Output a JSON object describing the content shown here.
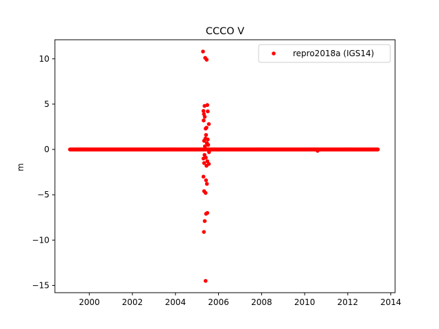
{
  "chart_data": {
    "type": "scatter",
    "title": "CCCO V",
    "xlabel": "",
    "ylabel": "m",
    "xlim": [
      1998.4,
      2014.2
    ],
    "ylim": [
      -15.8,
      12.1
    ],
    "xticks": [
      2000,
      2002,
      2004,
      2006,
      2008,
      2010,
      2012,
      2014
    ],
    "yticks": [
      -15,
      -10,
      -5,
      0,
      5,
      10
    ],
    "grid": false,
    "legend_position": "top-right",
    "series": [
      {
        "name": "repro2018a (IGS14)",
        "color": "#ff0000",
        "marker": "circle",
        "baseline": {
          "x_start": 1999.1,
          "x_end": 2013.4,
          "y": 0.0
        },
        "outliers": [
          {
            "x": 2005.28,
            "y": 10.8
          },
          {
            "x": 2005.38,
            "y": 10.1
          },
          {
            "x": 2005.45,
            "y": 9.9
          },
          {
            "x": 2005.35,
            "y": 4.8
          },
          {
            "x": 2005.48,
            "y": 4.9
          },
          {
            "x": 2005.3,
            "y": 4.25
          },
          {
            "x": 2005.5,
            "y": 4.2
          },
          {
            "x": 2005.32,
            "y": 3.9
          },
          {
            "x": 2005.36,
            "y": 3.6
          },
          {
            "x": 2005.31,
            "y": 3.2
          },
          {
            "x": 2005.55,
            "y": 2.8
          },
          {
            "x": 2005.4,
            "y": 2.3
          },
          {
            "x": 2005.44,
            "y": 2.4
          },
          {
            "x": 2005.42,
            "y": 1.6
          },
          {
            "x": 2005.39,
            "y": 1.2
          },
          {
            "x": 2005.5,
            "y": 1.1
          },
          {
            "x": 2005.33,
            "y": 0.95
          },
          {
            "x": 2005.46,
            "y": 0.7
          },
          {
            "x": 2005.52,
            "y": 0.5
          },
          {
            "x": 2005.37,
            "y": 0.35
          },
          {
            "x": 2005.56,
            "y": -0.3
          },
          {
            "x": 2005.35,
            "y": -0.6
          },
          {
            "x": 2005.41,
            "y": -0.9
          },
          {
            "x": 2005.3,
            "y": -1.0
          },
          {
            "x": 2005.48,
            "y": -1.3
          },
          {
            "x": 2005.33,
            "y": -1.5
          },
          {
            "x": 2005.55,
            "y": -1.6
          },
          {
            "x": 2005.44,
            "y": -1.8
          },
          {
            "x": 2005.3,
            "y": -3.0
          },
          {
            "x": 2005.42,
            "y": -3.4
          },
          {
            "x": 2005.46,
            "y": -3.8
          },
          {
            "x": 2005.33,
            "y": -4.6
          },
          {
            "x": 2005.4,
            "y": -4.8
          },
          {
            "x": 2005.48,
            "y": -7.0
          },
          {
            "x": 2005.42,
            "y": -7.1
          },
          {
            "x": 2005.36,
            "y": -7.9
          },
          {
            "x": 2005.32,
            "y": -9.1
          },
          {
            "x": 2005.4,
            "y": -14.5
          }
        ],
        "baseline_extras": [
          {
            "x": 2010.6,
            "y": -0.15
          }
        ]
      }
    ]
  }
}
